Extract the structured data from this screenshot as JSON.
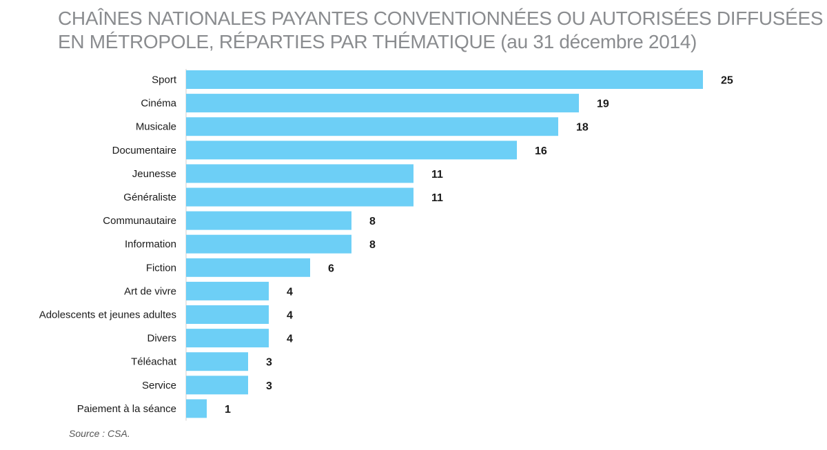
{
  "title": {
    "line1": "CHAÎNES NATIONALES PAYANTES CONVENTIONNÉES OU AUTORISÉES DIFFUSÉES",
    "line2": "EN MÉTROPOLE, RÉPARTIES PAR THÉMATIQUE (au 31 décembre 2014)"
  },
  "source": "Source : CSA.",
  "colors": {
    "bar": "#6dcff6",
    "label": "#1a1a1a",
    "title": "#8a8c8f"
  },
  "chart_data": {
    "type": "bar",
    "orientation": "horizontal",
    "categories": [
      "Sport",
      "Cinéma",
      "Musicale",
      "Documentaire",
      "Jeunesse",
      "Généraliste",
      "Communautaire",
      "Information",
      "Fiction",
      "Art de vivre",
      "Adolescents et jeunes adultes",
      "Divers",
      "Téléachat",
      "Service",
      "Paiement à la séance"
    ],
    "values": [
      25,
      19,
      18,
      16,
      11,
      11,
      8,
      8,
      6,
      4,
      4,
      4,
      3,
      3,
      1
    ],
    "xlim": [
      0,
      25
    ],
    "grid": false,
    "legend": "none"
  }
}
